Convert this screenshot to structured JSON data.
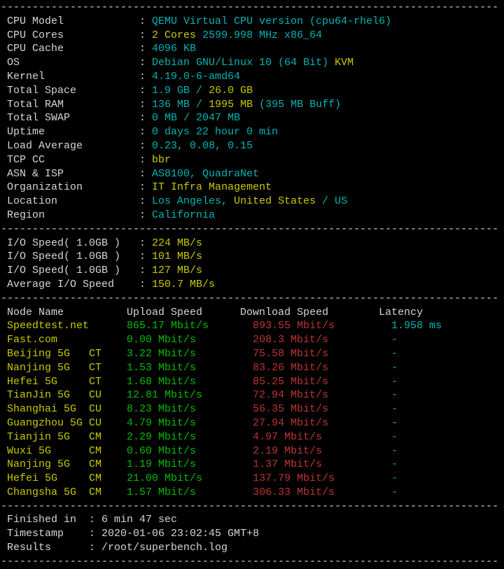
{
  "colors": {
    "default": "#d6d6d6",
    "cyan": "#00b5b5",
    "yellow": "#c9c900",
    "green": "#00bb00",
    "red": "#bd3434",
    "background": "#000000"
  },
  "lines": [
    {
      "name": "separator-1",
      "segments": [
        {
          "text": "-------------------------------------------------------------------------------",
          "color": "default"
        }
      ]
    },
    {
      "name": "cpu-model",
      "segments": [
        {
          "text": " CPU Model            : ",
          "color": "default"
        },
        {
          "text": "QEMU Virtual CPU version (cpu64-rhel6)",
          "color": "cyan"
        }
      ]
    },
    {
      "name": "cpu-cores",
      "segments": [
        {
          "text": " CPU Cores            : ",
          "color": "default"
        },
        {
          "text": "2 Cores",
          "color": "yellow"
        },
        {
          "text": " 2599.998 MHz x86_64",
          "color": "cyan"
        }
      ]
    },
    {
      "name": "cpu-cache",
      "segments": [
        {
          "text": " CPU Cache            : ",
          "color": "default"
        },
        {
          "text": "4096 KB",
          "color": "cyan"
        }
      ]
    },
    {
      "name": "os",
      "segments": [
        {
          "text": " OS                   : ",
          "color": "default"
        },
        {
          "text": "Debian GNU/Linux 10 (64 Bit) ",
          "color": "cyan"
        },
        {
          "text": "KVM",
          "color": "yellow"
        }
      ]
    },
    {
      "name": "kernel",
      "segments": [
        {
          "text": " Kernel               : ",
          "color": "default"
        },
        {
          "text": "4.19.0-6-amd64",
          "color": "cyan"
        }
      ]
    },
    {
      "name": "total-space",
      "segments": [
        {
          "text": " Total Space          : ",
          "color": "default"
        },
        {
          "text": "1.9 GB / ",
          "color": "cyan"
        },
        {
          "text": "26.0 GB",
          "color": "yellow"
        }
      ]
    },
    {
      "name": "total-ram",
      "segments": [
        {
          "text": " Total RAM            : ",
          "color": "default"
        },
        {
          "text": "136 MB / ",
          "color": "cyan"
        },
        {
          "text": "1995 MB",
          "color": "yellow"
        },
        {
          "text": " (395 MB Buff)",
          "color": "cyan"
        }
      ]
    },
    {
      "name": "total-swap",
      "segments": [
        {
          "text": " Total SWAP           : ",
          "color": "default"
        },
        {
          "text": "0 MB / 2047 MB",
          "color": "cyan"
        }
      ]
    },
    {
      "name": "uptime",
      "segments": [
        {
          "text": " Uptime               : ",
          "color": "default"
        },
        {
          "text": "0 days 22 hour 0 min",
          "color": "cyan"
        }
      ]
    },
    {
      "name": "load-average",
      "segments": [
        {
          "text": " Load Average         : ",
          "color": "default"
        },
        {
          "text": "0.23, 0.08, 0.15",
          "color": "cyan"
        }
      ]
    },
    {
      "name": "tcp-cc",
      "segments": [
        {
          "text": " TCP CC               : ",
          "color": "default"
        },
        {
          "text": "bbr",
          "color": "yellow"
        }
      ]
    },
    {
      "name": "asn-isp",
      "segments": [
        {
          "text": " ASN & ISP            : ",
          "color": "default"
        },
        {
          "text": "AS8100, QuadraNet",
          "color": "cyan"
        }
      ]
    },
    {
      "name": "organization",
      "segments": [
        {
          "text": " Organization         : ",
          "color": "default"
        },
        {
          "text": "IT Infra Management",
          "color": "yellow"
        }
      ]
    },
    {
      "name": "location",
      "segments": [
        {
          "text": " Location             : ",
          "color": "default"
        },
        {
          "text": "Los Angeles, ",
          "color": "cyan"
        },
        {
          "text": "United States",
          "color": "yellow"
        },
        {
          "text": " / US",
          "color": "cyan"
        }
      ]
    },
    {
      "name": "region",
      "segments": [
        {
          "text": " Region               : ",
          "color": "default"
        },
        {
          "text": "California",
          "color": "cyan"
        }
      ]
    },
    {
      "name": "separator-2",
      "segments": [
        {
          "text": "-------------------------------------------------------------------------------",
          "color": "default"
        }
      ]
    },
    {
      "name": "io-speed-1",
      "segments": [
        {
          "text": " I/O Speed( 1.0GB )   : ",
          "color": "default"
        },
        {
          "text": "224 MB/s",
          "color": "yellow"
        }
      ]
    },
    {
      "name": "io-speed-2",
      "segments": [
        {
          "text": " I/O Speed( 1.0GB )   : ",
          "color": "default"
        },
        {
          "text": "101 MB/s",
          "color": "yellow"
        }
      ]
    },
    {
      "name": "io-speed-3",
      "segments": [
        {
          "text": " I/O Speed( 1.0GB )   : ",
          "color": "default"
        },
        {
          "text": "127 MB/s",
          "color": "yellow"
        }
      ]
    },
    {
      "name": "io-speed-avg",
      "segments": [
        {
          "text": " Average I/O Speed    : ",
          "color": "default"
        },
        {
          "text": "150.7 MB/s",
          "color": "yellow"
        }
      ]
    },
    {
      "name": "separator-3",
      "segments": [
        {
          "text": "-------------------------------------------------------------------------------",
          "color": "default"
        }
      ]
    },
    {
      "name": "speedtest-header",
      "segments": [
        {
          "text": " Node Name          Upload Speed      Download Speed        Latency",
          "color": "default"
        }
      ]
    },
    {
      "name": "node-speedtest-net",
      "segments": [
        {
          "text": " Speedtest.net      ",
          "color": "yellow"
        },
        {
          "text": "865.17 Mbit/s       ",
          "color": "green"
        },
        {
          "text": "893.55 Mbit/s         ",
          "color": "red"
        },
        {
          "text": "1.958 ms",
          "color": "cyan"
        }
      ]
    },
    {
      "name": "node-fast-com",
      "segments": [
        {
          "text": " Fast.com           ",
          "color": "yellow"
        },
        {
          "text": "0.00 Mbit/s         ",
          "color": "green"
        },
        {
          "text": "208.3 Mbit/s          ",
          "color": "red"
        },
        {
          "text": "-",
          "color": "cyan"
        }
      ]
    },
    {
      "name": "node-beijing-ct",
      "segments": [
        {
          "text": " Beijing 5G   CT    ",
          "color": "yellow"
        },
        {
          "text": "3.22 Mbit/s         ",
          "color": "green"
        },
        {
          "text": "75.58 Mbit/s          ",
          "color": "red"
        },
        {
          "text": "-",
          "color": "cyan"
        }
      ]
    },
    {
      "name": "node-nanjing-ct",
      "segments": [
        {
          "text": " Nanjing 5G   CT    ",
          "color": "yellow"
        },
        {
          "text": "1.53 Mbit/s         ",
          "color": "green"
        },
        {
          "text": "83.26 Mbit/s          ",
          "color": "red"
        },
        {
          "text": "-",
          "color": "cyan"
        }
      ]
    },
    {
      "name": "node-hefei-ct",
      "segments": [
        {
          "text": " Hefei 5G     CT    ",
          "color": "yellow"
        },
        {
          "text": "1.68 Mbit/s         ",
          "color": "green"
        },
        {
          "text": "85.25 Mbit/s          ",
          "color": "red"
        },
        {
          "text": "-",
          "color": "cyan"
        }
      ]
    },
    {
      "name": "node-tianjin-cu",
      "segments": [
        {
          "text": " TianJin 5G   CU    ",
          "color": "yellow"
        },
        {
          "text": "12.81 Mbit/s        ",
          "color": "green"
        },
        {
          "text": "72.94 Mbit/s          ",
          "color": "red"
        },
        {
          "text": "-",
          "color": "cyan"
        }
      ]
    },
    {
      "name": "node-shanghai-cu",
      "segments": [
        {
          "text": " Shanghai 5G  CU    ",
          "color": "yellow"
        },
        {
          "text": "8.23 Mbit/s         ",
          "color": "green"
        },
        {
          "text": "56.35 Mbit/s          ",
          "color": "red"
        },
        {
          "text": "-",
          "color": "cyan"
        }
      ]
    },
    {
      "name": "node-guangzhou-cu",
      "segments": [
        {
          "text": " Guangzhou 5G CU    ",
          "color": "yellow"
        },
        {
          "text": "4.79 Mbit/s         ",
          "color": "green"
        },
        {
          "text": "27.94 Mbit/s          ",
          "color": "red"
        },
        {
          "text": "-",
          "color": "cyan"
        }
      ]
    },
    {
      "name": "node-tianjin-cm",
      "segments": [
        {
          "text": " Tianjin 5G   CM    ",
          "color": "yellow"
        },
        {
          "text": "2.29 Mbit/s         ",
          "color": "green"
        },
        {
          "text": "4.97 Mbit/s           ",
          "color": "red"
        },
        {
          "text": "-",
          "color": "cyan"
        }
      ]
    },
    {
      "name": "node-wuxi-cm",
      "segments": [
        {
          "text": " Wuxi 5G      CM    ",
          "color": "yellow"
        },
        {
          "text": "0.60 Mbit/s         ",
          "color": "green"
        },
        {
          "text": "2.19 Mbit/s           ",
          "color": "red"
        },
        {
          "text": "-",
          "color": "cyan"
        }
      ]
    },
    {
      "name": "node-nanjing-cm",
      "segments": [
        {
          "text": " Nanjing 5G   CM    ",
          "color": "yellow"
        },
        {
          "text": "1.19 Mbit/s         ",
          "color": "green"
        },
        {
          "text": "1.37 Mbit/s           ",
          "color": "red"
        },
        {
          "text": "-",
          "color": "cyan"
        }
      ]
    },
    {
      "name": "node-hefei-cm",
      "segments": [
        {
          "text": " Hefei 5G     CM    ",
          "color": "yellow"
        },
        {
          "text": "21.00 Mbit/s        ",
          "color": "green"
        },
        {
          "text": "137.79 Mbit/s         ",
          "color": "red"
        },
        {
          "text": "-",
          "color": "cyan"
        }
      ]
    },
    {
      "name": "node-changsha-cm",
      "segments": [
        {
          "text": " Changsha 5G  CM    ",
          "color": "yellow"
        },
        {
          "text": "1.57 Mbit/s         ",
          "color": "green"
        },
        {
          "text": "306.33 Mbit/s         ",
          "color": "red"
        },
        {
          "text": "-",
          "color": "cyan"
        }
      ]
    },
    {
      "name": "separator-4",
      "segments": [
        {
          "text": "-------------------------------------------------------------------------------",
          "color": "default"
        }
      ]
    },
    {
      "name": "finished-in",
      "segments": [
        {
          "text": " Finished in  : ",
          "color": "default"
        },
        {
          "text": "6 min 47 sec",
          "color": "default"
        }
      ]
    },
    {
      "name": "timestamp",
      "segments": [
        {
          "text": " Timestamp    : ",
          "color": "default"
        },
        {
          "text": "2020-01-06 23:02:45 GMT+8",
          "color": "default"
        }
      ]
    },
    {
      "name": "results",
      "segments": [
        {
          "text": " Results      : ",
          "color": "default"
        },
        {
          "text": "/root/superbench.log",
          "color": "default"
        }
      ]
    },
    {
      "name": "separator-5",
      "segments": [
        {
          "text": "-------------------------------------------------------------------------------",
          "color": "default"
        }
      ]
    }
  ]
}
